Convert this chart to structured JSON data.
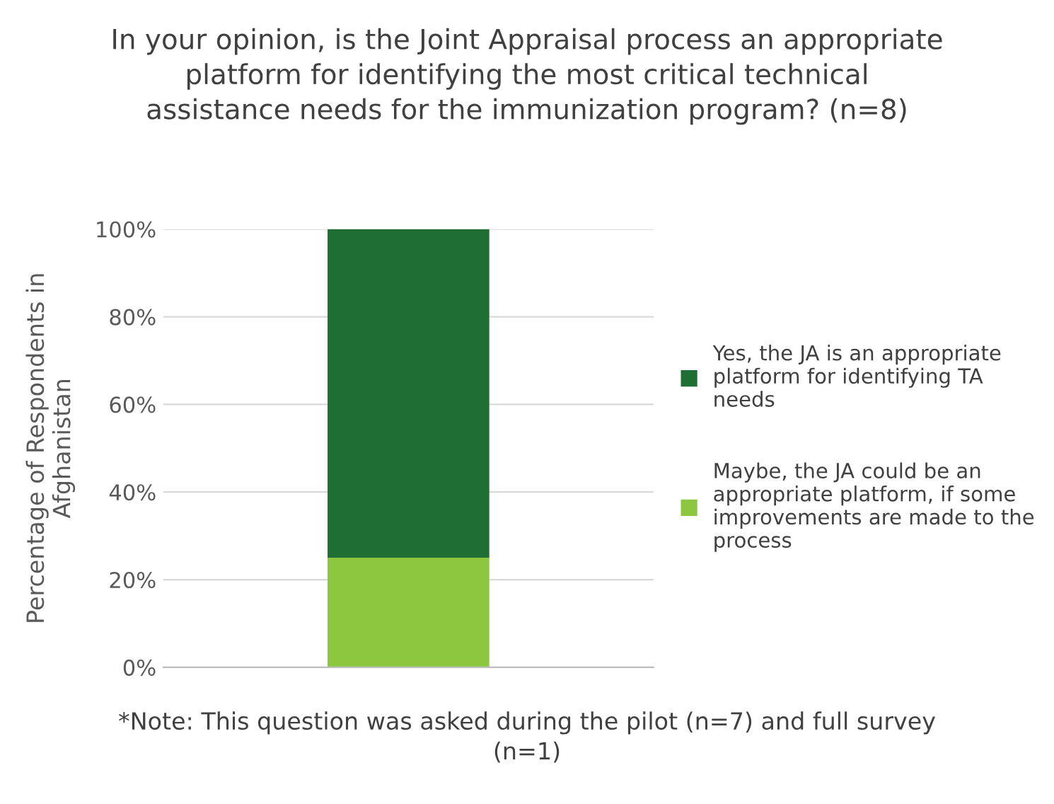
{
  "chart_data": {
    "type": "bar",
    "stacked": true,
    "title": "In your opinion, is the Joint Appraisal process an appropriate platform for identifying the most critical technical assistance needs for the immunization program? (n=8)",
    "ylabel": "Percentage of Respondents in Afghanistan",
    "categories": [
      null
    ],
    "series": [
      {
        "name": "Maybe, the JA could be an appropriate platform, if some improvements are made to the process",
        "color": "#8dc63f",
        "values": [
          25
        ]
      },
      {
        "name": "Yes, the JA is an appropriate platform for identifying TA needs",
        "color": "#1f6f35",
        "values": [
          75
        ]
      }
    ],
    "ylim": [
      0,
      100
    ],
    "yticks": [
      {
        "value": 0,
        "label": "0%"
      },
      {
        "value": 20,
        "label": "20%"
      },
      {
        "value": 40,
        "label": "40%"
      },
      {
        "value": 60,
        "label": "60%"
      },
      {
        "value": 80,
        "label": "80%"
      },
      {
        "value": 100,
        "label": "100%"
      }
    ],
    "grid": "y",
    "legend": "right",
    "annotations": [
      "*Note: This question was asked during the pilot (n=7) and full survey (n=1)"
    ]
  }
}
